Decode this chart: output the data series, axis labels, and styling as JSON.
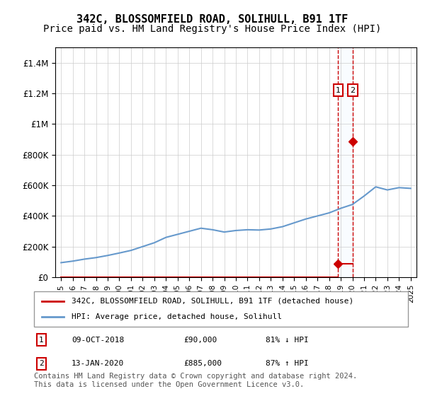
{
  "title": "342C, BLOSSOMFIELD ROAD, SOLIHULL, B91 1TF",
  "subtitle": "Price paid vs. HM Land Registry's House Price Index (HPI)",
  "footer": "Contains HM Land Registry data © Crown copyright and database right 2024.\nThis data is licensed under the Open Government Licence v3.0.",
  "legend_line1": "342C, BLOSSOMFIELD ROAD, SOLIHULL, B91 1TF (detached house)",
  "legend_line2": "HPI: Average price, detached house, Solihull",
  "transactions": [
    {
      "label": "1",
      "date": "09-OCT-2018",
      "price": 90000,
      "pct": "81% ↓ HPI",
      "year": 2018.78
    },
    {
      "label": "2",
      "date": "13-JAN-2020",
      "price": 885000,
      "pct": "87% ↑ HPI",
      "year": 2020.04
    }
  ],
  "hpi_years": [
    1995,
    1996,
    1997,
    1998,
    1999,
    2000,
    2001,
    2002,
    2003,
    2004,
    2005,
    2006,
    2007,
    2008,
    2009,
    2010,
    2011,
    2012,
    2013,
    2014,
    2015,
    2016,
    2017,
    2018,
    2019,
    2020,
    2021,
    2022,
    2023,
    2024,
    2025
  ],
  "hpi_values": [
    95000,
    105000,
    118000,
    128000,
    142000,
    158000,
    175000,
    200000,
    225000,
    260000,
    280000,
    300000,
    320000,
    310000,
    295000,
    305000,
    310000,
    308000,
    315000,
    330000,
    355000,
    380000,
    400000,
    420000,
    450000,
    475000,
    530000,
    590000,
    570000,
    585000,
    580000
  ],
  "ylim": [
    0,
    1500000
  ],
  "xlim": [
    1994.5,
    2025.5
  ],
  "line_color_red": "#cc0000",
  "line_color_blue": "#6699cc",
  "bg_color": "#ffffff",
  "grid_color": "#cccccc",
  "annotation_box_color": "#cc0000",
  "shade_color": "#ddeeff",
  "title_fontsize": 11,
  "subtitle_fontsize": 10,
  "axis_fontsize": 9,
  "footer_fontsize": 7.5
}
